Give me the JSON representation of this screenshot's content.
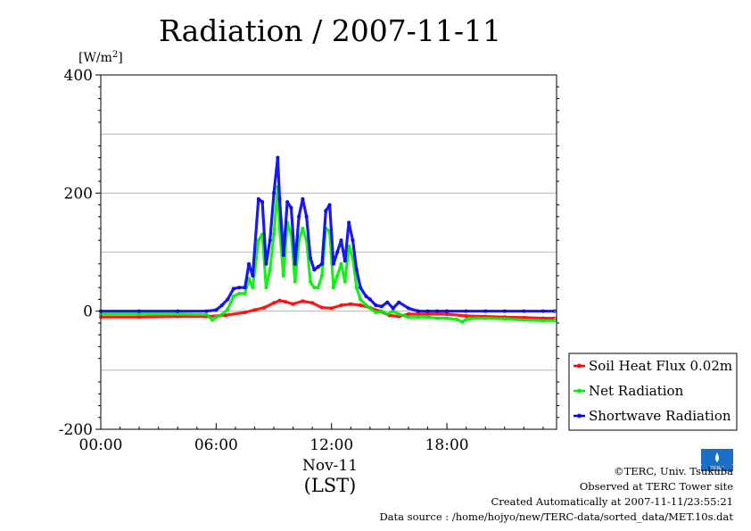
{
  "chart_data": {
    "type": "line",
    "title": "Radiation / 2007-11-11",
    "ylabel": "[W/m",
    "ylabel_sup": "2",
    "ylabel_close": "]",
    "ylim": [
      -200,
      400
    ],
    "yticks": [
      -200,
      0,
      200,
      400
    ],
    "y_grid": [
      -100,
      0,
      100,
      200,
      300
    ],
    "xlim": [
      0,
      23.7
    ],
    "xticks": [
      {
        "h": 0,
        "label": "00:00"
      },
      {
        "h": 6,
        "label": "06:00"
      },
      {
        "h": 12,
        "label": "12:00"
      },
      {
        "h": 18,
        "label": "18:00"
      }
    ],
    "xlabel_date": "Nov-11",
    "xlabel": "(LST)",
    "grid": true,
    "legend_position": "bottom-right outside",
    "series": [
      {
        "name": "Soil Heat Flux 0.02m",
        "color": "#ff0000",
        "x": [
          0,
          2,
          4,
          5.5,
          6.5,
          7.5,
          8,
          8.5,
          9,
          9.3,
          9.6,
          10,
          10.5,
          11,
          11.5,
          12,
          12.5,
          13,
          13.5,
          14,
          14.5,
          15,
          15.5,
          16,
          17,
          18,
          19,
          20,
          21,
          22,
          23,
          23.6
        ],
        "y": [
          -10,
          -10,
          -9,
          -9,
          -7,
          -2,
          2,
          6,
          14,
          18,
          16,
          12,
          17,
          14,
          6,
          5,
          10,
          12,
          10,
          6,
          0,
          -7,
          -9,
          -5,
          -5,
          -5,
          -8,
          -9,
          -10,
          -11,
          -12,
          -12
        ]
      },
      {
        "name": "Net Radiation",
        "color": "#00ee00",
        "x": [
          0,
          2,
          4,
          5.5,
          5.8,
          6,
          6.3,
          6.6,
          6.9,
          7.2,
          7.5,
          7.7,
          7.9,
          8.2,
          8.4,
          8.6,
          8.8,
          9,
          9.2,
          9.3,
          9.5,
          9.7,
          9.9,
          10.1,
          10.3,
          10.5,
          10.7,
          10.9,
          11.1,
          11.3,
          11.5,
          11.7,
          11.9,
          12.1,
          12.3,
          12.5,
          12.7,
          12.9,
          13.1,
          13.3,
          13.5,
          13.8,
          14,
          14.3,
          14.6,
          14.9,
          15.2,
          15.5,
          16,
          16.5,
          17,
          17.5,
          18,
          18.5,
          18.8,
          19,
          19.5,
          20,
          21,
          22,
          23,
          23.6
        ],
        "y": [
          -5,
          -5,
          -5,
          -6,
          -15,
          -10,
          -6,
          3,
          25,
          30,
          30,
          55,
          40,
          120,
          130,
          40,
          70,
          130,
          210,
          140,
          60,
          150,
          130,
          50,
          120,
          140,
          120,
          50,
          40,
          40,
          60,
          140,
          135,
          40,
          60,
          80,
          50,
          110,
          90,
          40,
          20,
          10,
          5,
          -2,
          0,
          -5,
          0,
          -5,
          -10,
          -10,
          -10,
          -12,
          -12,
          -14,
          -18,
          -14,
          -12,
          -12,
          -13,
          -15,
          -16,
          -16
        ]
      },
      {
        "name": "Shortwave Radiation",
        "color": "#0000ee",
        "x": [
          0,
          2,
          4,
          5.5,
          6,
          6.3,
          6.6,
          6.9,
          7.2,
          7.5,
          7.7,
          7.9,
          8.2,
          8.4,
          8.6,
          8.8,
          9,
          9.2,
          9.3,
          9.5,
          9.7,
          9.9,
          10.1,
          10.3,
          10.5,
          10.7,
          10.9,
          11.1,
          11.3,
          11.5,
          11.7,
          11.9,
          12.1,
          12.3,
          12.5,
          12.7,
          12.9,
          13.1,
          13.3,
          13.5,
          13.8,
          14,
          14.3,
          14.6,
          14.9,
          15.2,
          15.5,
          16,
          16.5,
          17,
          17.5,
          18,
          19,
          20,
          21,
          22,
          23,
          23.6
        ],
        "y": [
          0,
          0,
          0,
          0,
          2,
          10,
          20,
          38,
          40,
          40,
          80,
          60,
          190,
          185,
          80,
          120,
          200,
          260,
          190,
          95,
          185,
          175,
          80,
          160,
          190,
          160,
          90,
          70,
          75,
          80,
          170,
          180,
          80,
          100,
          120,
          85,
          150,
          120,
          70,
          40,
          25,
          20,
          10,
          8,
          15,
          5,
          15,
          5,
          0,
          0,
          0,
          0,
          0,
          0,
          0,
          0,
          0,
          0
        ]
      }
    ]
  },
  "logo_text": "TERC",
  "footer": {
    "copyright": "©TERC, Univ. Tsukuba",
    "site": "Observed at TERC Tower site",
    "created": "Created Automatically at 2007-11-11/23:55:21",
    "source": "Data source : /home/hojyo/new/TERC-data/sorted_data/MET.10s.dat"
  }
}
